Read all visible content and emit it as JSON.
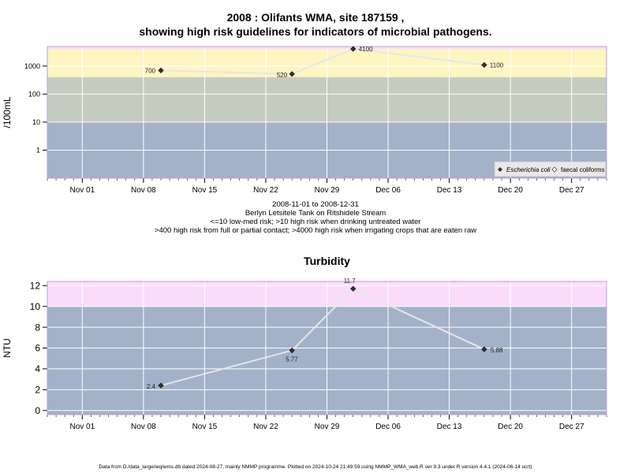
{
  "page": {
    "title_line1": "2008 : Olifants WMA, site 187159 ,",
    "title_line2": "showing high risk guidelines for indicators of microbial pathogens.",
    "caption_lines": [
      "2008-11-01 to 2008-12-31",
      "Berlyn Letsitele Tank on Ritshidele Stream",
      "<=10 low-med risk; >10 high risk when drinking untreated water",
      ">400 high risk from full or partial contact; >4000 high risk when irrigating crops that are eaten raw"
    ],
    "footer": "Data from D:/data_large/wq/wms.db dated 2024-08-27, mainly NMMP programme. Plotted on 2024-10-24 21:49:59 using NMMP_WMA_web.R ver 9.3 under R version 4.4.1 (2024-06-14 ucrt)"
  },
  "chart_data": [
    {
      "type": "line",
      "title": "",
      "ylabel": "/100mL",
      "xlabel": "",
      "y_scale": "log10",
      "ylim": [
        0.1,
        5000
      ],
      "xlim": [
        "2008-10-28",
        "2008-12-31"
      ],
      "y_ticks": [
        1,
        10,
        100,
        1000
      ],
      "y_tick_labels": [
        "1",
        "10",
        "100",
        "1000"
      ],
      "x_ticks": [
        "2008-11-01",
        "2008-11-08",
        "2008-11-15",
        "2008-11-22",
        "2008-11-29",
        "2008-12-06",
        "2008-12-13",
        "2008-12-20",
        "2008-12-27"
      ],
      "x_tick_labels": [
        "Nov 01",
        "Nov 08",
        "Nov 15",
        "Nov 22",
        "Nov 29",
        "Dec 06",
        "Dec 13",
        "Dec 20",
        "Dec 27"
      ],
      "grid": true,
      "risk_bands": [
        {
          "from": 0.1,
          "to": 10,
          "color": "#a3b2c9"
        },
        {
          "from": 10,
          "to": 400,
          "color": "#c5ccbf"
        },
        {
          "from": 400,
          "to": 4000,
          "color": "#fdf5c2"
        },
        {
          "from": 4000,
          "to": 5000,
          "color": "#fadcfa"
        }
      ],
      "series": [
        {
          "name": "Escherichia coli",
          "x": [
            "2008-11-10",
            "2008-11-25",
            "2008-12-02",
            "2008-12-17"
          ],
          "y": [
            700,
            520,
            4100,
            1100
          ],
          "labels": [
            "700",
            "520",
            "4100",
            "1100"
          ]
        }
      ],
      "legend": {
        "position": "bottom-right",
        "entries": [
          "Escherichia coli",
          "faecal coliforms"
        ]
      }
    },
    {
      "type": "line",
      "title": "Turbidity",
      "ylabel": "NTU",
      "xlabel": "",
      "ylim": [
        -0.4,
        12.4
      ],
      "xlim": [
        "2008-10-28",
        "2008-12-31"
      ],
      "y_ticks": [
        0,
        2,
        4,
        6,
        8,
        10,
        12
      ],
      "y_tick_labels": [
        "0",
        "2",
        "4",
        "6",
        "8",
        "10",
        "12"
      ],
      "x_ticks": [
        "2008-11-01",
        "2008-11-08",
        "2008-11-15",
        "2008-11-22",
        "2008-11-29",
        "2008-12-06",
        "2008-12-13",
        "2008-12-20",
        "2008-12-27"
      ],
      "x_tick_labels": [
        "Nov 01",
        "Nov 08",
        "Nov 15",
        "Nov 22",
        "Nov 29",
        "Dec 06",
        "Dec 13",
        "Dec 20",
        "Dec 27"
      ],
      "grid": true,
      "risk_bands": [
        {
          "from": -0.4,
          "to": 10,
          "color": "#a3b2c9"
        },
        {
          "from": 10,
          "to": 12.4,
          "color": "#fadcfa"
        }
      ],
      "series": [
        {
          "name": "",
          "x": [
            "2008-11-10",
            "2008-11-25",
            "2008-12-02",
            "2008-12-17"
          ],
          "y": [
            2.4,
            5.77,
            11.7,
            5.88
          ],
          "labels": [
            "2.4",
            "5.77",
            "11.7",
            "5.88"
          ]
        }
      ]
    }
  ]
}
